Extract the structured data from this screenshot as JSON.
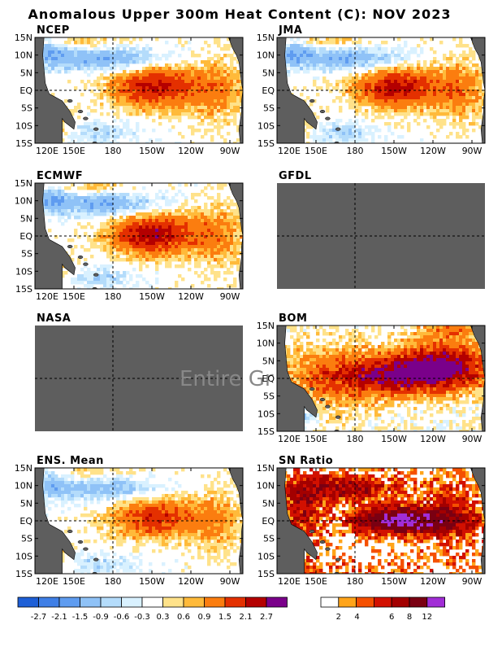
{
  "title": "Anomalous Upper 300m Heat Content (C): NOV 2023",
  "chart_data": {
    "type": "heatmap",
    "x_ticks": [
      "120E",
      "150E",
      "180",
      "150W",
      "120W",
      "90W"
    ],
    "y_ticks": [
      "15N",
      "10N",
      "5N",
      "EQ",
      "5S",
      "10S",
      "15S"
    ],
    "reference_lines": [
      "180",
      "EQ"
    ],
    "panels": [
      {
        "id": "ncep",
        "label": "NCEP",
        "status": "data",
        "features": {
          "warm_center_lon": "150W",
          "warm_peak": 2.1,
          "cool_band_lat": "10N",
          "cool_peak": -1.5
        }
      },
      {
        "id": "jma",
        "label": "JMA",
        "status": "data",
        "features": {
          "warm_center_lon": "150W",
          "warm_peak": 2.1,
          "cool_band_lat": "10N",
          "cool_peak": -1.5
        }
      },
      {
        "id": "ecmwf",
        "label": "ECMWF",
        "status": "data",
        "features": {
          "warm_center_lon": "160W",
          "warm_peak": 2.1,
          "cool_band_lat": "10N",
          "cool_peak": -1.5
        }
      },
      {
        "id": "gfdl",
        "label": "GFDL",
        "status": "missing",
        "overlay_text": ""
      },
      {
        "id": "nasa",
        "label": "NASA",
        "status": "missing",
        "overlay_text": "Entire Gr"
      },
      {
        "id": "bom",
        "label": "BOM",
        "status": "data",
        "features": {
          "warm_center_lon": "140W",
          "warm_peak": 2.7,
          "cool_band_lat": "none",
          "cool_peak": 0
        }
      },
      {
        "id": "ens",
        "label": "ENS. Mean",
        "status": "data",
        "features": {
          "warm_center_lon": "150W",
          "warm_peak": 1.5,
          "cool_band_lat": "10N",
          "cool_peak": -1.5
        }
      },
      {
        "id": "sn",
        "label": "SN Ratio",
        "status": "data",
        "scale": "sn",
        "features": {
          "warm_center_lon": "150W",
          "warm_peak": 12
        }
      }
    ],
    "anomaly_colorbar": {
      "labels": [
        "-2.7",
        "-2.1",
        "-1.5",
        "-0.9",
        "-0.6",
        "-0.3",
        "0.3",
        "0.6",
        "0.9",
        "1.5",
        "2.1",
        "2.7"
      ],
      "colors": [
        "#1e5fd6",
        "#3f7fe6",
        "#5f9cf0",
        "#8fc2f7",
        "#b4dcfb",
        "#d9f1ff",
        "#ffffff",
        "#ffe28a",
        "#ffba3a",
        "#fb7d0f",
        "#e43000",
        "#b40000",
        "#7a008a"
      ]
    },
    "sn_colorbar": {
      "labels": [
        "2",
        "4",
        "6",
        "8",
        "12"
      ],
      "colors": [
        "#ffffff",
        "#ffa41a",
        "#f55000",
        "#d21000",
        "#a30000",
        "#7a0012",
        "#a12dd6"
      ]
    }
  }
}
